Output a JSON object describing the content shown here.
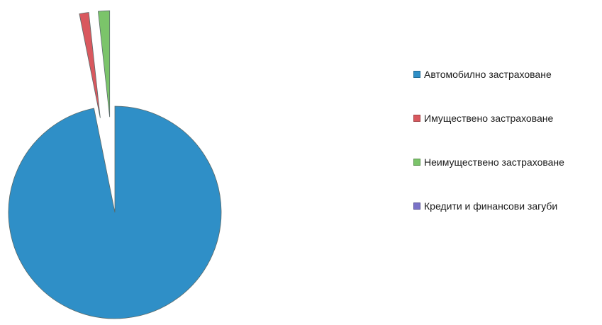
{
  "chart_data": {
    "type": "pie",
    "exploded": true,
    "legend_position": "right",
    "series": [
      {
        "name": "Автомобилно застраховане",
        "value": 95.3,
        "color": "#2f8fc7"
      },
      {
        "name": "Имуществено застраховане",
        "value": 1.4,
        "color": "#d9585e"
      },
      {
        "name": "Неимуществено застраховане",
        "value": 1.7,
        "color": "#7bc46a"
      },
      {
        "name": "Кредити и финансови загуби",
        "value": 0.0,
        "color": "#7a72c8"
      }
    ]
  }
}
